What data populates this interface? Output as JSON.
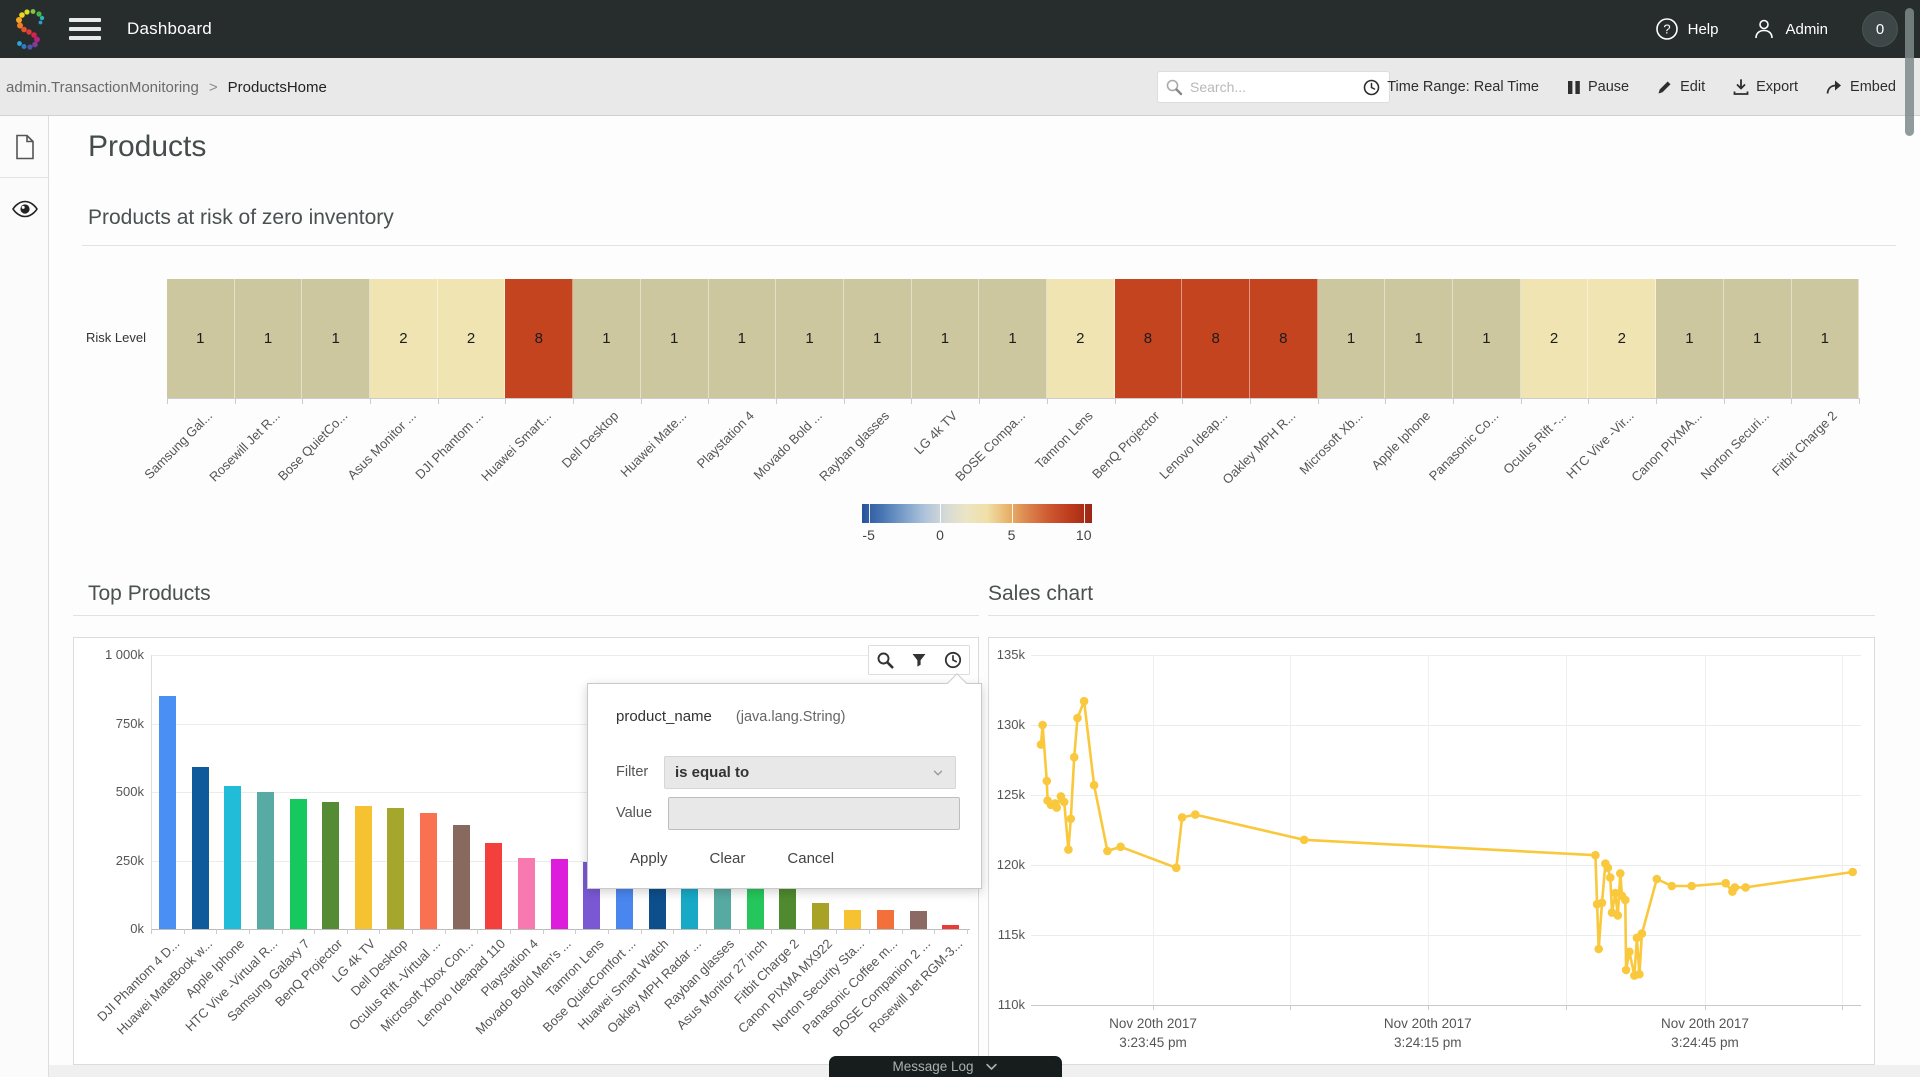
{
  "topbar": {
    "title": "Dashboard",
    "help_label": "Help",
    "user_label": "Admin",
    "badge_count": "0"
  },
  "toolbar": {
    "breadcrumb": [
      "admin.TransactionMonitoring",
      "ProductsHome"
    ],
    "breadcrumb_separator": ">",
    "search_placeholder": "Search...",
    "time_range_label": "Time Range: Real Time",
    "pause_label": "Pause",
    "edit_label": "Edit",
    "export_label": "Export",
    "embed_label": "Embed"
  },
  "page": {
    "title": "Products"
  },
  "filter_popup": {
    "field_name": "product_name",
    "field_type": "(java.lang.String)",
    "filter_label": "Filter",
    "filter_value": "is equal to",
    "value_label": "Value",
    "value_text": "",
    "apply_label": "Apply",
    "clear_label": "Clear",
    "cancel_label": "Cancel"
  },
  "message_log": {
    "label": "Message Log"
  },
  "chart_data": [
    {
      "type": "heatmap",
      "title": "Products at risk of zero inventory",
      "row_label": "Risk Level",
      "categories": [
        "Samsung Gal...",
        "Rosewill Jet R...",
        "Bose QuietCo...",
        "Asus Monitor ...",
        "DJI Phantom ...",
        "Huawei Smart...",
        "Dell Desktop",
        "Huawei Mate...",
        "Playstation 4",
        "Movado Bold ...",
        "Rayban glasses",
        "LG 4k TV",
        "BOSE Compa...",
        "Tamron Lens",
        "BenQ Projector",
        "Lenovo Ideap...",
        "Oakley MPH R...",
        "Microsoft Xb...",
        "Apple Iphone",
        "Panasonic Co...",
        "Oculus Rift -...",
        "HTC Vive -Vir...",
        "Canon PIXMA...",
        "Norton Securi...",
        "Fitbit Charge 2"
      ],
      "values": [
        1,
        1,
        1,
        2,
        2,
        8,
        1,
        1,
        1,
        1,
        1,
        1,
        1,
        2,
        8,
        8,
        8,
        1,
        1,
        1,
        2,
        2,
        1,
        1,
        1
      ],
      "value_colors": {
        "1": "#cdc7a0",
        "2": "#f0e5b2",
        "8": "#c4441f"
      },
      "legend": {
        "min": -5,
        "max": 10,
        "ticks": [
          "-5",
          "0",
          "5",
          "10"
        ],
        "tick_fracs": [
          2.9,
          33.9,
          65.0,
          96.4
        ],
        "gradient": [
          "#26549c",
          "#4a77b4",
          "#7b9fca",
          "#aec3da",
          "#d6dad6",
          "#ece5c4",
          "#f0dfa6",
          "#e7b36b",
          "#da814b",
          "#cd5630",
          "#bc3a1c",
          "#9c2614"
        ]
      }
    },
    {
      "type": "bar",
      "title": "Top Products",
      "ylabel_ticks": [
        "1 000k",
        "750k",
        "500k",
        "250k",
        "0k"
      ],
      "ylim": [
        0,
        1000
      ],
      "unit": "k",
      "categories": [
        "DJI Phantom 4 D...",
        "Huawei MateBook w...",
        "Apple Iphone",
        "HTC Vive -Virtual R...",
        "Samsung Galaxy 7",
        "BenQ Projector",
        "LG 4k TV",
        "Dell Desktop",
        "Oculus Rift -Virtual ...",
        "Microsoft Xbox Con...",
        "Lenovo Ideapad 110",
        "Playstation 4",
        "Movado Bold Men's ...",
        "Tamron Lens",
        "Bose QuietComfort ...",
        "Huawei Smart Watch",
        "Oakley MPH Radar ...",
        "Rayban glasses",
        "Asus Monitor 27 inch",
        "Fitbit Charge 2",
        "Canon PIXMA MX922",
        "Norton Security Sta...",
        "Panasonic Coffee m...",
        "BOSE Companion 2 ...",
        "Rosewill Jet RGM-3..."
      ],
      "values": [
        850,
        590,
        522,
        500,
        475,
        465,
        450,
        443,
        425,
        380,
        315,
        260,
        255,
        245,
        238,
        226,
        214,
        202,
        190,
        178,
        96,
        69,
        69,
        66,
        15
      ],
      "colors": [
        "#4a90f4",
        "#0f5a9b",
        "#20bcd8",
        "#57aba4",
        "#16c95f",
        "#568b36",
        "#f6c232",
        "#a4a72c",
        "#f97150",
        "#87695e",
        "#f4403c",
        "#f879b0",
        "#dc1ddc",
        "#7a58d4",
        "#4a86f0",
        "#0d4f8c",
        "#18a9c6",
        "#57aaa2",
        "#25c75c",
        "#4f8b2e",
        "#a8a326",
        "#f6c232",
        "#f4703a",
        "#8a6a62",
        "#ea3b35"
      ]
    },
    {
      "type": "line",
      "title": "Sales chart",
      "color": "#f9c83d",
      "ylim": [
        110,
        135
      ],
      "ytick_labels": [
        "135k",
        "130k",
        "125k",
        "120k",
        "115k",
        "110k"
      ],
      "xticks": [
        {
          "frac": 14.7,
          "line1": "Nov 20th 2017",
          "line2": "3:23:45 pm"
        },
        {
          "frac": 47.8,
          "line1": "Nov 20th 2017",
          "line2": "3:24:15 pm"
        },
        {
          "frac": 81.2,
          "line1": "Nov 20th 2017",
          "line2": "3:24:45 pm"
        }
      ],
      "minor_tick_fracs": [
        14.7,
        31.2,
        47.8,
        64.5,
        81.2,
        97.7
      ],
      "points": [
        [
          1.2,
          128.6
        ],
        [
          1.4,
          130.0
        ],
        [
          1.9,
          126.0
        ],
        [
          2.0,
          124.6
        ],
        [
          2.4,
          124.3
        ],
        [
          2.9,
          124.4
        ],
        [
          3.1,
          124.1
        ],
        [
          3.6,
          124.9
        ],
        [
          4.0,
          124.5
        ],
        [
          4.5,
          121.1
        ],
        [
          4.8,
          123.3
        ],
        [
          5.2,
          127.7
        ],
        [
          5.6,
          130.5
        ],
        [
          6.4,
          131.7
        ],
        [
          7.6,
          125.7
        ],
        [
          9.2,
          121.0
        ],
        [
          10.8,
          121.3
        ],
        [
          17.5,
          119.8
        ],
        [
          18.2,
          123.4
        ],
        [
          19.8,
          123.6
        ],
        [
          32.9,
          121.8
        ],
        [
          68.0,
          120.7
        ],
        [
          68.2,
          117.2
        ],
        [
          68.4,
          114.0
        ],
        [
          68.8,
          117.3
        ],
        [
          69.2,
          120.1
        ],
        [
          69.5,
          119.8
        ],
        [
          69.8,
          119.1
        ],
        [
          70.0,
          116.6
        ],
        [
          70.4,
          118.0
        ],
        [
          70.7,
          116.4
        ],
        [
          71.0,
          119.4
        ],
        [
          71.2,
          117.8
        ],
        [
          71.6,
          117.5
        ],
        [
          71.7,
          112.5
        ],
        [
          72.1,
          113.8
        ],
        [
          72.7,
          112.1
        ],
        [
          73.0,
          114.8
        ],
        [
          73.3,
          112.2
        ],
        [
          73.6,
          115.1
        ],
        [
          75.4,
          119.0
        ],
        [
          77.2,
          118.5
        ],
        [
          79.6,
          118.5
        ],
        [
          83.7,
          118.7
        ],
        [
          84.5,
          118.1
        ],
        [
          84.8,
          118.4
        ],
        [
          86.1,
          118.4
        ],
        [
          99.0,
          119.5
        ]
      ]
    }
  ]
}
